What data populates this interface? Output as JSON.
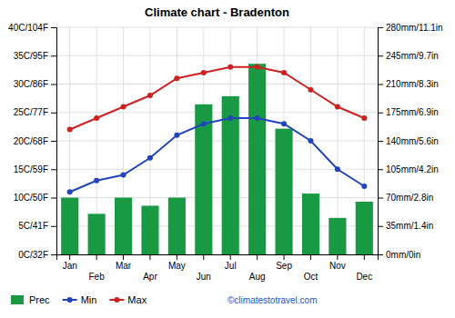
{
  "chart_data": {
    "type": "bar",
    "title": "Climate chart - Bradenton",
    "categories": [
      "Jan",
      "Feb",
      "Mar",
      "Apr",
      "May",
      "Jun",
      "Jul",
      "Aug",
      "Sep",
      "Oct",
      "Nov",
      "Dec"
    ],
    "series": [
      {
        "name": "Prec",
        "axis": "y2",
        "color": "#1a9944",
        "values": [
          70,
          50,
          70,
          60,
          70,
          185,
          195,
          235,
          155,
          75,
          45,
          65
        ]
      },
      {
        "name": "Min",
        "type": "line",
        "marker": "circle",
        "color": "#2244bb",
        "values": [
          11,
          13,
          14,
          17,
          21,
          23,
          24,
          24,
          23,
          20,
          15,
          12
        ]
      },
      {
        "name": "Max",
        "type": "line",
        "marker": "circle",
        "color": "#cc2222",
        "values": [
          22,
          24,
          26,
          28,
          31,
          32,
          33,
          33,
          32,
          29,
          26,
          24
        ]
      }
    ],
    "ylim": [
      0,
      40
    ],
    "yticks": [
      {
        "value": 0,
        "label": "0C/32F"
      },
      {
        "value": 5,
        "label": "5C/41F"
      },
      {
        "value": 10,
        "label": "10C/50F"
      },
      {
        "value": 15,
        "label": "15C/59F"
      },
      {
        "value": 20,
        "label": "20C/68F"
      },
      {
        "value": 25,
        "label": "25C/77F"
      },
      {
        "value": 30,
        "label": "30C/86F"
      },
      {
        "value": 35,
        "label": "35C/95F"
      },
      {
        "value": 40,
        "label": "40C/104F"
      }
    ],
    "y2lim": [
      0,
      280
    ],
    "y2ticks": [
      {
        "value": 0,
        "label": "0mm/0in"
      },
      {
        "value": 35,
        "label": "35mm/1.4in"
      },
      {
        "value": 70,
        "label": "70mm/2.8in"
      },
      {
        "value": 105,
        "label": "105mm/4.2in"
      },
      {
        "value": 140,
        "label": "140mm/5.6in"
      },
      {
        "value": 175,
        "label": "175mm/6.9in"
      },
      {
        "value": 210,
        "label": "210mm/8.3in"
      },
      {
        "value": 245,
        "label": "245mm/9.7in"
      },
      {
        "value": 280,
        "label": "280mm/11.1in"
      }
    ],
    "grid": true,
    "legend": "bottom-left",
    "annotations": [
      {
        "text": "©climatestotravel.com"
      }
    ]
  }
}
